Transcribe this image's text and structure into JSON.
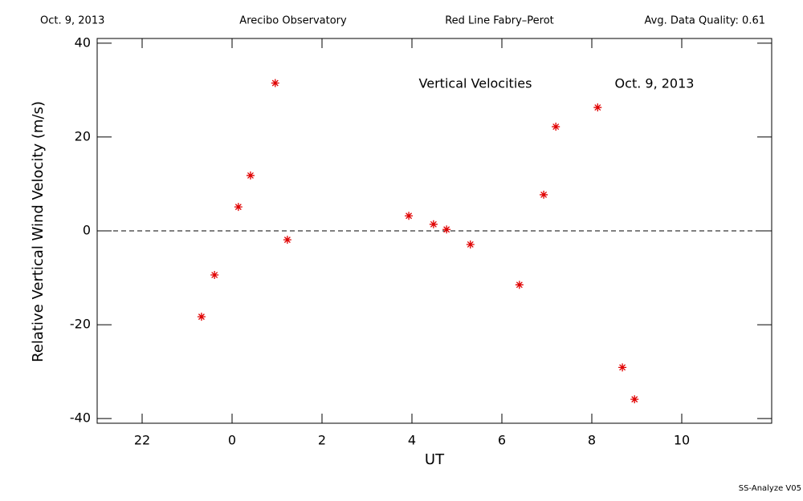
{
  "header": {
    "date": "Oct. 9, 2013",
    "site": "Arecibo Observatory",
    "instrument": "Red Line Fabry–Perot",
    "quality": "Avg. Data Quality: 0.61"
  },
  "footer": "SS-Analyze V05",
  "chart_data": {
    "type": "scatter",
    "annotations": [
      "Vertical Velocities",
      "Oct. 9, 2013"
    ],
    "xlabel": "UT",
    "ylabel": "Relative Vertical Wind Velocity (m/s)",
    "xlim": [
      -3,
      12
    ],
    "ylim": [
      -41,
      41
    ],
    "xticks": [
      {
        "value": -2,
        "label": "22"
      },
      0,
      2,
      4,
      6,
      8,
      10
    ],
    "yticks": [
      -40,
      -20,
      0,
      20,
      40
    ],
    "hline": 0,
    "color": "#e00000",
    "x": [
      -0.68,
      -0.39,
      0.14,
      0.41,
      0.96,
      1.23,
      3.93,
      4.48,
      4.77,
      5.3,
      6.39,
      6.93,
      7.2,
      8.13,
      8.68,
      8.95
    ],
    "values": [
      -18.3,
      -9.4,
      5.1,
      11.8,
      31.5,
      -1.9,
      3.2,
      1.4,
      0.3,
      -2.9,
      -11.5,
      7.7,
      22.2,
      26.3,
      -29.1,
      -35.9
    ]
  }
}
